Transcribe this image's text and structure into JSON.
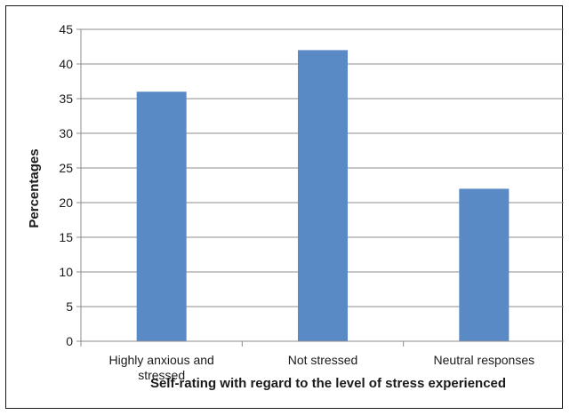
{
  "chart_data": {
    "type": "bar",
    "categories": [
      [
        "Highly anxious and",
        "stressed"
      ],
      [
        "Not stressed"
      ],
      [
        "Neutral responses"
      ]
    ],
    "values": [
      36,
      42,
      22
    ],
    "title": "",
    "xlabel": "Self-rating with regard to the level of stress experienced",
    "ylabel": "Percentages",
    "ylim": [
      0,
      45
    ],
    "yticks": [
      0,
      5,
      10,
      15,
      20,
      25,
      30,
      35,
      40,
      45
    ],
    "grid": true,
    "bar_color": "#5a8ac6",
    "grid_color": "#8c8c8c",
    "axis_color": "#8c8c8c"
  }
}
